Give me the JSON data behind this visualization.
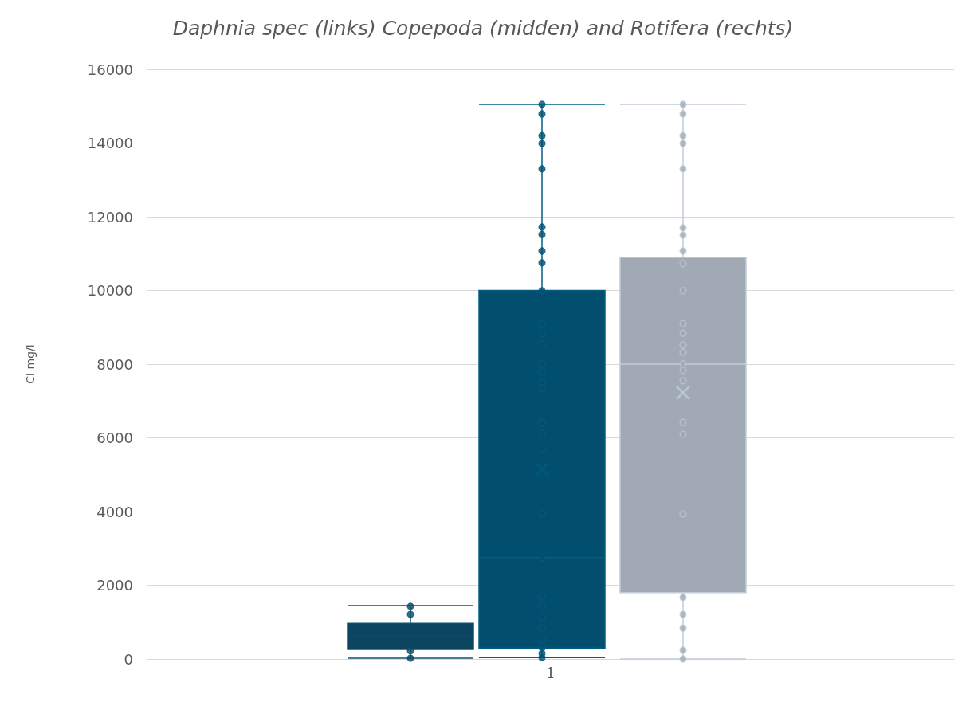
{
  "chart_data": {
    "type": "box",
    "title": "Daphnia spec (links) Copepoda (midden) and Rotifera (rechts)",
    "ylabel": "Cl mg/l",
    "categories": [
      "1"
    ],
    "ylim": [
      0,
      16000
    ],
    "yticks": [
      0,
      2000,
      4000,
      6000,
      8000,
      10000,
      12000,
      14000,
      16000
    ],
    "grid": "y",
    "marker": "circle",
    "series": [
      {
        "type": "box",
        "color": "#0b4560",
        "boxes": [
          {
            "low": 20,
            "q1": 260,
            "median": 600,
            "q3": 970,
            "high": 1450
          }
        ]
      },
      {
        "type": "box",
        "color": "#024e6e",
        "boxes": [
          {
            "low": 40,
            "q1": 300,
            "median": 2750,
            "q3": 10000,
            "high": 15050,
            "mean": 5150
          }
        ]
      },
      {
        "type": "box",
        "color": "#a1aab4",
        "boxes": [
          {
            "low": 0,
            "q1": 1800,
            "median": 8000,
            "q3": 10900,
            "high": 15050,
            "mean": 7220
          }
        ]
      },
      {
        "type": "scatter",
        "color": "#0b4560",
        "x": [
          "1",
          "1",
          "1",
          "1"
        ],
        "values": [
          1430,
          1210,
          220,
          20
        ]
      },
      {
        "type": "scatter",
        "color": "#024e6e",
        "x": [
          "1",
          "1",
          "1",
          "1",
          "1",
          "1",
          "1",
          "1",
          "1",
          "1",
          "1",
          "1",
          "1",
          "1",
          "1",
          "1",
          "1",
          "1",
          "1",
          "1",
          "1",
          "1",
          "1",
          "1",
          "1",
          "1",
          "1",
          "1",
          "1",
          "1"
        ],
        "values": [
          15050,
          14790,
          14200,
          13990,
          13300,
          11720,
          11520,
          11070,
          10750,
          9990,
          9100,
          8820,
          8540,
          8000,
          7810,
          7500,
          7350,
          6420,
          6120,
          5710,
          3940,
          2750,
          1690,
          1430,
          1130,
          830,
          520,
          300,
          150,
          40
        ]
      },
      {
        "type": "scatter",
        "color": "#a1aab4",
        "x": [
          "1",
          "1",
          "1",
          "1",
          "1",
          "1",
          "1",
          "1",
          "1",
          "1",
          "1",
          "1",
          "1",
          "1",
          "1",
          "1",
          "1",
          "1",
          "1",
          "1",
          "1",
          "1",
          "1",
          "1",
          "1"
        ],
        "values": [
          14790,
          14200,
          13990,
          13300,
          11700,
          11500,
          11070,
          10730,
          9990,
          9100,
          8840,
          8520,
          8320,
          8000,
          7830,
          7550,
          6420,
          6100,
          3940,
          1670,
          1210,
          840,
          240,
          0,
          15050
        ]
      }
    ]
  }
}
